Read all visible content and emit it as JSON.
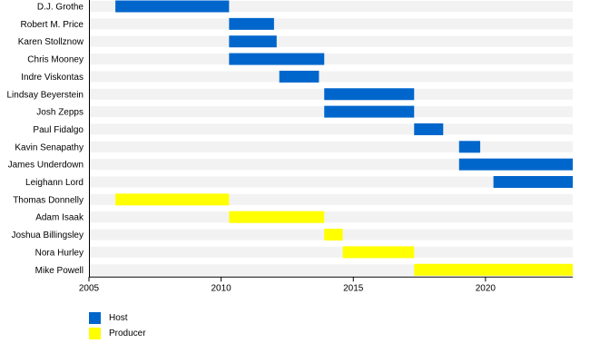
{
  "chart_data": {
    "type": "bar",
    "orientation": "horizontal",
    "x_ticks": [
      2005,
      2010,
      2015,
      2020
    ],
    "xlim": [
      2005,
      2023.3
    ],
    "grid": "alternating row bands",
    "legend_placement": "bottom-left",
    "colors": {
      "Host": "#0066cc",
      "Producer": "#ffff00",
      "row_band": "#f2f2f2",
      "axis": "#000000"
    },
    "rows": [
      {
        "name": "D.J. Grothe",
        "role": "Host",
        "start": 2006.0,
        "end": 2010.3
      },
      {
        "name": "Robert M. Price",
        "role": "Host",
        "start": 2010.3,
        "end": 2012.0
      },
      {
        "name": "Karen Stollznow",
        "role": "Host",
        "start": 2010.3,
        "end": 2012.1
      },
      {
        "name": "Chris Mooney",
        "role": "Host",
        "start": 2010.3,
        "end": 2013.9
      },
      {
        "name": "Indre Viskontas",
        "role": "Host",
        "start": 2012.2,
        "end": 2013.7
      },
      {
        "name": "Lindsay Beyerstein",
        "role": "Host",
        "start": 2013.9,
        "end": 2017.3
      },
      {
        "name": "Josh Zepps",
        "role": "Host",
        "start": 2013.9,
        "end": 2017.3
      },
      {
        "name": "Paul Fidalgo",
        "role": "Host",
        "start": 2017.3,
        "end": 2018.4
      },
      {
        "name": "Kavin Senapathy",
        "role": "Host",
        "start": 2019.0,
        "end": 2019.8
      },
      {
        "name": "James Underdown",
        "role": "Host",
        "start": 2019.0,
        "end": 2023.3
      },
      {
        "name": "Leighann Lord",
        "role": "Host",
        "start": 2020.3,
        "end": 2023.3
      },
      {
        "name": "Thomas Donnelly",
        "role": "Producer",
        "start": 2006.0,
        "end": 2010.3
      },
      {
        "name": "Adam Isaak",
        "role": "Producer",
        "start": 2010.3,
        "end": 2013.9
      },
      {
        "name": "Joshua Billingsley",
        "role": "Producer",
        "start": 2013.9,
        "end": 2014.6
      },
      {
        "name": "Nora Hurley",
        "role": "Producer",
        "start": 2014.6,
        "end": 2017.3
      },
      {
        "name": "Mike Powell",
        "role": "Producer",
        "start": 2017.3,
        "end": 2023.3
      }
    ]
  },
  "legend": {
    "host_label": "Host",
    "producer_label": "Producer"
  }
}
